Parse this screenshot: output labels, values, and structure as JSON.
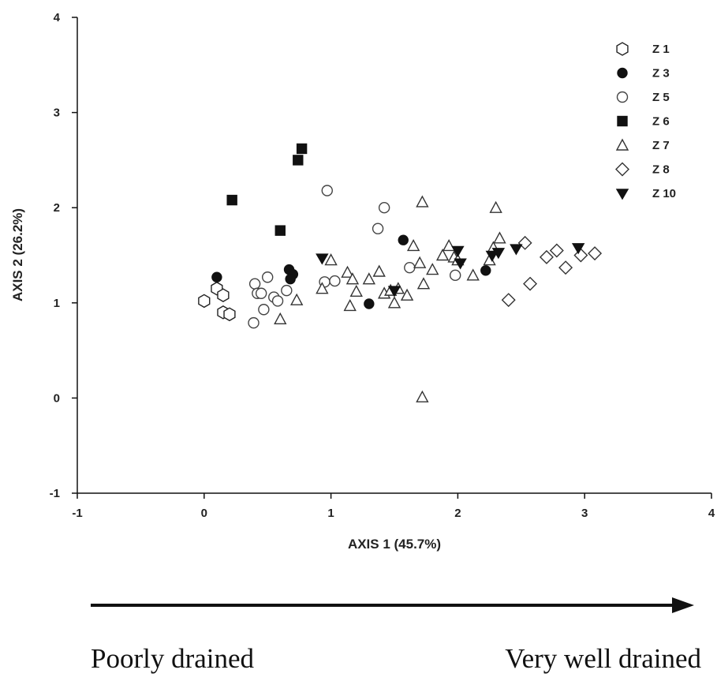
{
  "chart_data": {
    "type": "scatter",
    "xlabel": "AXIS 1 (45.7%)",
    "ylabel": "AXIS 2 (26.2%)",
    "xlim": [
      -1,
      4
    ],
    "ylim": [
      -1,
      4
    ],
    "x_ticks": [
      -1,
      0,
      1,
      2,
      3,
      4
    ],
    "y_ticks": [
      -1,
      0,
      1,
      2,
      3,
      4
    ],
    "grid": false,
    "legend_position": "top-right",
    "series": [
      {
        "name": "Z 1",
        "marker": "hexagon-open",
        "color": "#222222",
        "points": [
          [
            0.0,
            1.02
          ],
          [
            0.1,
            1.15
          ],
          [
            0.15,
            1.08
          ],
          [
            0.15,
            0.9
          ],
          [
            0.2,
            0.88
          ]
        ]
      },
      {
        "name": "Z 3",
        "marker": "circle-filled",
        "color": "#111111",
        "points": [
          [
            0.1,
            1.27
          ],
          [
            0.67,
            1.35
          ],
          [
            0.7,
            1.3
          ],
          [
            0.68,
            1.25
          ],
          [
            1.3,
            0.99
          ],
          [
            1.57,
            1.66
          ],
          [
            2.22,
            1.34
          ]
        ]
      },
      {
        "name": "Z 5",
        "marker": "circle-open",
        "color": "#444444",
        "points": [
          [
            0.4,
            1.2
          ],
          [
            0.42,
            1.1
          ],
          [
            0.45,
            1.1
          ],
          [
            0.5,
            1.27
          ],
          [
            0.55,
            1.06
          ],
          [
            0.58,
            1.02
          ],
          [
            0.65,
            1.13
          ],
          [
            0.47,
            0.93
          ],
          [
            0.39,
            0.79
          ],
          [
            0.97,
            2.18
          ],
          [
            1.42,
            2.0
          ],
          [
            1.37,
            1.78
          ],
          [
            0.95,
            1.22
          ],
          [
            1.03,
            1.23
          ],
          [
            1.62,
            1.37
          ],
          [
            1.98,
            1.29
          ]
        ]
      },
      {
        "name": "Z 6",
        "marker": "square-filled",
        "color": "#111111",
        "points": [
          [
            0.22,
            2.08
          ],
          [
            0.6,
            1.76
          ],
          [
            0.74,
            2.5
          ],
          [
            0.77,
            2.62
          ]
        ]
      },
      {
        "name": "Z 7",
        "marker": "triangle-open",
        "color": "#333333",
        "points": [
          [
            0.6,
            0.83
          ],
          [
            0.73,
            1.03
          ],
          [
            0.93,
            1.15
          ],
          [
            1.0,
            1.45
          ],
          [
            1.13,
            1.32
          ],
          [
            1.17,
            1.25
          ],
          [
            1.15,
            0.97
          ],
          [
            1.2,
            1.12
          ],
          [
            1.3,
            1.25
          ],
          [
            1.38,
            1.33
          ],
          [
            1.42,
            1.1
          ],
          [
            1.47,
            1.13
          ],
          [
            1.5,
            1.0
          ],
          [
            1.53,
            1.15
          ],
          [
            1.6,
            1.08
          ],
          [
            1.65,
            1.6
          ],
          [
            1.7,
            1.42
          ],
          [
            1.73,
            1.2
          ],
          [
            1.72,
            2.06
          ],
          [
            1.72,
            0.01
          ],
          [
            1.8,
            1.35
          ],
          [
            1.88,
            1.5
          ],
          [
            1.93,
            1.6
          ],
          [
            1.97,
            1.48
          ],
          [
            2.0,
            1.45
          ],
          [
            2.12,
            1.29
          ],
          [
            2.25,
            1.45
          ],
          [
            2.28,
            1.58
          ],
          [
            2.3,
            2.0
          ],
          [
            2.33,
            1.68
          ]
        ]
      },
      {
        "name": "Z 8",
        "marker": "diamond-open",
        "color": "#333333",
        "points": [
          [
            2.4,
            1.03
          ],
          [
            2.53,
            1.63
          ],
          [
            2.57,
            1.2
          ],
          [
            2.7,
            1.48
          ],
          [
            2.78,
            1.55
          ],
          [
            2.85,
            1.37
          ],
          [
            2.97,
            1.5
          ],
          [
            3.08,
            1.52
          ]
        ]
      },
      {
        "name": "Z 10",
        "marker": "triangle-down-filled",
        "color": "#111111",
        "points": [
          [
            0.93,
            1.47
          ],
          [
            1.5,
            1.13
          ],
          [
            2.0,
            1.55
          ],
          [
            2.02,
            1.42
          ],
          [
            2.27,
            1.5
          ],
          [
            2.32,
            1.53
          ],
          [
            2.46,
            1.57
          ],
          [
            2.95,
            1.58
          ]
        ]
      }
    ]
  },
  "footer": {
    "left_label": "Poorly drained",
    "right_label": "Very well drained"
  }
}
